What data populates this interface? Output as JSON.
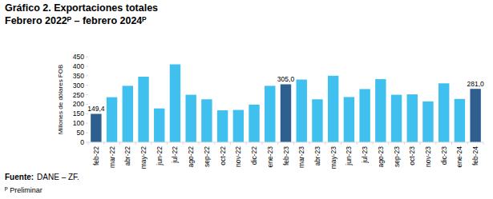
{
  "chart_data": {
    "type": "bar",
    "title": "Gráfico 2. Exportaciones totales",
    "subtitle": "Febrero 2022ᴾ – febrero 2024ᴾ",
    "y_label": "Millones de dólares FOB",
    "source_label": "Fuente:",
    "source": "DANE – ZF.",
    "note": "ᴾ Preliminar",
    "categories": [
      "feb-22",
      "mar-22",
      "abr-22",
      "may-22",
      "jun-22",
      "jul-22",
      "ago-22",
      "sep-22",
      "oct-22",
      "nov-22",
      "dic-22",
      "ene-23",
      "feb-23",
      "mar-23",
      "abr-23",
      "may-23",
      "jun-23",
      "jul-23",
      "ago-23",
      "sep-23",
      "oct-23",
      "nov-23",
      "dic-23",
      "ene-24",
      "feb-24"
    ],
    "values": [
      149.4,
      237,
      297,
      345,
      178,
      410,
      250,
      226,
      168,
      170,
      198,
      297,
      305.0,
      330,
      226,
      350,
      238,
      280,
      332,
      250,
      252,
      215,
      310,
      228,
      281.0
    ],
    "value_labels": [
      "149,4",
      null,
      null,
      null,
      null,
      null,
      null,
      null,
      null,
      null,
      null,
      null,
      "305,0",
      null,
      null,
      null,
      null,
      null,
      null,
      null,
      null,
      null,
      null,
      null,
      "281,0"
    ],
    "colors": [
      "#2f5f8f",
      "#3fc0ef",
      "#3fc0ef",
      "#3fc0ef",
      "#3fc0ef",
      "#3fc0ef",
      "#3fc0ef",
      "#3fc0ef",
      "#3fc0ef",
      "#3fc0ef",
      "#3fc0ef",
      "#3fc0ef",
      "#2f5f8f",
      "#3fc0ef",
      "#3fc0ef",
      "#3fc0ef",
      "#3fc0ef",
      "#3fc0ef",
      "#3fc0ef",
      "#3fc0ef",
      "#3fc0ef",
      "#3fc0ef",
      "#3fc0ef",
      "#3fc0ef",
      "#2f5f8f"
    ],
    "ylim": [
      0,
      450
    ],
    "yticks": [
      0,
      50,
      100,
      150,
      200,
      250,
      300,
      350,
      400,
      450
    ],
    "grid": false,
    "data_labels": true
  }
}
